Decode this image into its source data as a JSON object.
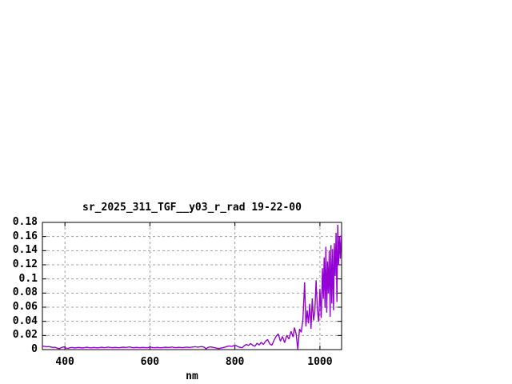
{
  "window": {
    "background_color": "#ffffff"
  },
  "chart_data": {
    "type": "line",
    "title": "sr_2025_311_TGF__y03_r_rad 19-22-00",
    "xlabel": "nm",
    "ylabel": "",
    "xlim": [
      347,
      1051
    ],
    "ylim": [
      0,
      0.18
    ],
    "x_ticks": [
      400,
      600,
      800,
      1000
    ],
    "x_tick_labels": [
      "400",
      "600",
      "800",
      "1000"
    ],
    "y_ticks": [
      0,
      0.02,
      0.04,
      0.06,
      0.08,
      0.1,
      0.12,
      0.14,
      0.16,
      0.18
    ],
    "y_tick_labels": [
      "0",
      "0.02",
      "0.04",
      "0.06",
      "0.08",
      "0.1",
      "0.12",
      "0.14",
      "0.16",
      "0.18"
    ],
    "grid": true,
    "legend_position": "none",
    "line_color": "#9400d3",
    "grid_color": "#a0a0a0",
    "frame_color": "#000000",
    "series": [
      {
        "name": "sr_2025_311_TGF__y03_r_rad",
        "points": [
          [
            347,
            0.005
          ],
          [
            352,
            0.0046
          ],
          [
            357,
            0.004
          ],
          [
            362,
            0.0043
          ],
          [
            367,
            0.0036
          ],
          [
            372,
            0.003
          ],
          [
            377,
            0.0033
          ],
          [
            382,
            0.002
          ],
          [
            387,
            0.0013
          ],
          [
            392,
            0.003
          ],
          [
            397,
            0.0038
          ],
          [
            402,
            0.0024
          ],
          [
            407,
            0.0017
          ],
          [
            412,
            0.0026
          ],
          [
            417,
            0.003
          ],
          [
            422,
            0.0024
          ],
          [
            427,
            0.0027
          ],
          [
            432,
            0.0031
          ],
          [
            437,
            0.0027
          ],
          [
            442,
            0.0024
          ],
          [
            447,
            0.0029
          ],
          [
            452,
            0.0033
          ],
          [
            457,
            0.0028
          ],
          [
            462,
            0.0025
          ],
          [
            467,
            0.003
          ],
          [
            472,
            0.0028
          ],
          [
            477,
            0.0025
          ],
          [
            482,
            0.0029
          ],
          [
            487,
            0.0033
          ],
          [
            492,
            0.0028
          ],
          [
            497,
            0.0031
          ],
          [
            502,
            0.0035
          ],
          [
            507,
            0.003
          ],
          [
            512,
            0.0027
          ],
          [
            517,
            0.0031
          ],
          [
            522,
            0.0029
          ],
          [
            527,
            0.0026
          ],
          [
            532,
            0.003
          ],
          [
            537,
            0.0034
          ],
          [
            542,
            0.003
          ],
          [
            547,
            0.0033
          ],
          [
            552,
            0.0038
          ],
          [
            557,
            0.0031
          ],
          [
            562,
            0.0027
          ],
          [
            567,
            0.0031
          ],
          [
            572,
            0.0029
          ],
          [
            577,
            0.0027
          ],
          [
            582,
            0.0031
          ],
          [
            587,
            0.0029
          ],
          [
            592,
            0.0027
          ],
          [
            597,
            0.003
          ],
          [
            602,
            0.0033
          ],
          [
            607,
            0.0029
          ],
          [
            612,
            0.0027
          ],
          [
            617,
            0.0031
          ],
          [
            622,
            0.0028
          ],
          [
            627,
            0.0026
          ],
          [
            632,
            0.003
          ],
          [
            637,
            0.0034
          ],
          [
            642,
            0.0029
          ],
          [
            647,
            0.0032
          ],
          [
            652,
            0.0036
          ],
          [
            657,
            0.0031
          ],
          [
            662,
            0.0028
          ],
          [
            667,
            0.0032
          ],
          [
            672,
            0.003
          ],
          [
            677,
            0.0028
          ],
          [
            682,
            0.0032
          ],
          [
            687,
            0.0035
          ],
          [
            692,
            0.003
          ],
          [
            697,
            0.0033
          ],
          [
            702,
            0.0037
          ],
          [
            707,
            0.0041
          ],
          [
            712,
            0.0034
          ],
          [
            717,
            0.0039
          ],
          [
            722,
            0.0043
          ],
          [
            727,
            0.0036
          ],
          [
            732,
            0.0012
          ],
          [
            737,
            0.0032
          ],
          [
            742,
            0.0039
          ],
          [
            747,
            0.0034
          ],
          [
            752,
            0.0028
          ],
          [
            757,
            0.0021
          ],
          [
            762,
            0.0015
          ],
          [
            767,
            0.0022
          ],
          [
            772,
            0.0028
          ],
          [
            777,
            0.0036
          ],
          [
            782,
            0.0046
          ],
          [
            787,
            0.0052
          ],
          [
            792,
            0.0044
          ],
          [
            797,
            0.0056
          ],
          [
            802,
            0.006
          ],
          [
            807,
            0.0042
          ],
          [
            812,
            0.0032
          ],
          [
            817,
            0.0027
          ],
          [
            822,
            0.0055
          ],
          [
            827,
            0.0072
          ],
          [
            832,
            0.0058
          ],
          [
            837,
            0.0086
          ],
          [
            842,
            0.006
          ],
          [
            847,
            0.0048
          ],
          [
            852,
            0.009
          ],
          [
            857,
            0.0066
          ],
          [
            862,
            0.0102
          ],
          [
            867,
            0.0074
          ],
          [
            872,
            0.0118
          ],
          [
            877,
            0.0142
          ],
          [
            882,
            0.008
          ],
          [
            887,
            0.0062
          ],
          [
            892,
            0.0132
          ],
          [
            897,
            0.0188
          ],
          [
            902,
            0.0222
          ],
          [
            907,
            0.0118
          ],
          [
            912,
            0.0186
          ],
          [
            917,
            0.0098
          ],
          [
            922,
            0.0204
          ],
          [
            927,
            0.0148
          ],
          [
            932,
            0.0258
          ],
          [
            937,
            0.0178
          ],
          [
            940,
            0.0312
          ],
          [
            944,
            0.0225
          ],
          [
            948,
            0.0004
          ],
          [
            952,
            0.0292
          ],
          [
            956,
            0.0246
          ],
          [
            960,
            0.0424
          ],
          [
            964,
            0.0952
          ],
          [
            967,
            0.0328
          ],
          [
            970,
            0.0556
          ],
          [
            973,
            0.0372
          ],
          [
            976,
            0.0648
          ],
          [
            979,
            0.0295
          ],
          [
            982,
            0.0724
          ],
          [
            985,
            0.0412
          ],
          [
            988,
            0.0536
          ],
          [
            991,
            0.0982
          ],
          [
            994,
            0.0558
          ],
          [
            997,
            0.0396
          ],
          [
            1000,
            0.0862
          ],
          [
            1003,
            0.0448
          ],
          [
            1006,
            0.1152
          ],
          [
            1008,
            0.0718
          ],
          [
            1010,
            0.1304
          ],
          [
            1012,
            0.0592
          ],
          [
            1014,
            0.1456
          ],
          [
            1016,
            0.0524
          ],
          [
            1018,
            0.1248
          ],
          [
            1020,
            0.0796
          ],
          [
            1022,
            0.1402
          ],
          [
            1024,
            0.0466
          ],
          [
            1026,
            0.1478
          ],
          [
            1028,
            0.0652
          ],
          [
            1030,
            0.1424
          ],
          [
            1032,
            0.0556
          ],
          [
            1034,
            0.1506
          ],
          [
            1036,
            0.1042
          ],
          [
            1038,
            0.1652
          ],
          [
            1040,
            0.0674
          ],
          [
            1042,
            0.1768
          ],
          [
            1044,
            0.1196
          ],
          [
            1046,
            0.1604
          ],
          [
            1048,
            0.1286
          ],
          [
            1050,
            0.162
          ]
        ]
      }
    ]
  }
}
